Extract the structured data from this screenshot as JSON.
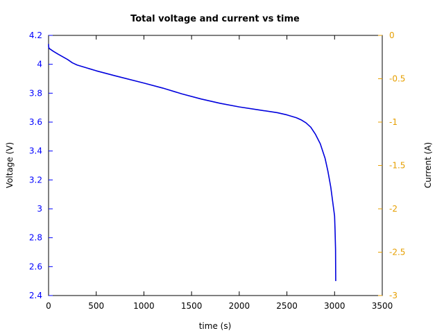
{
  "chart_data": {
    "type": "line",
    "title": "Total voltage and current vs time",
    "xlabel": "time (s)",
    "ylabel": "Voltage (V)",
    "y2label": "Current (A)",
    "xlim": [
      0,
      3500
    ],
    "ylim": [
      2.4,
      4.2
    ],
    "y2lim": [
      -3,
      0
    ],
    "xticks": [
      "0",
      "500",
      "1000",
      "1500",
      "2000",
      "2500",
      "3000",
      "3500"
    ],
    "yticks": [
      "2.4",
      "2.6",
      "2.8",
      "3",
      "3.2",
      "3.4",
      "3.6",
      "3.8",
      "4",
      "4.2"
    ],
    "y2ticks": [
      "-3",
      "-2.5",
      "-2",
      "-1.5",
      "-1",
      "-0.5",
      "0"
    ],
    "grid": false,
    "legend": "none",
    "colors": {
      "voltage_line": "#0000dd",
      "left_axis": "#0000ff",
      "right_axis": "#e69f00",
      "frame": "#000000"
    },
    "series": [
      {
        "axis": "left",
        "x": [
          0,
          1,
          3,
          10,
          50,
          100,
          200,
          250,
          300,
          400,
          500,
          700,
          1000,
          1200,
          1400,
          1600,
          1800,
          2000,
          2200,
          2400,
          2500,
          2600,
          2650,
          2700,
          2750,
          2800,
          2850,
          2900,
          2930,
          2960,
          2980,
          3000,
          3005,
          3010,
          3012
        ],
        "values": [
          4.14,
          4.12,
          4.115,
          4.108,
          4.09,
          4.07,
          4.033,
          4.01,
          3.995,
          3.975,
          3.955,
          3.92,
          3.87,
          3.835,
          3.795,
          3.76,
          3.73,
          3.705,
          3.685,
          3.665,
          3.65,
          3.63,
          3.615,
          3.595,
          3.565,
          3.515,
          3.45,
          3.35,
          3.26,
          3.15,
          3.05,
          2.95,
          2.85,
          2.72,
          2.5
        ]
      }
    ]
  }
}
